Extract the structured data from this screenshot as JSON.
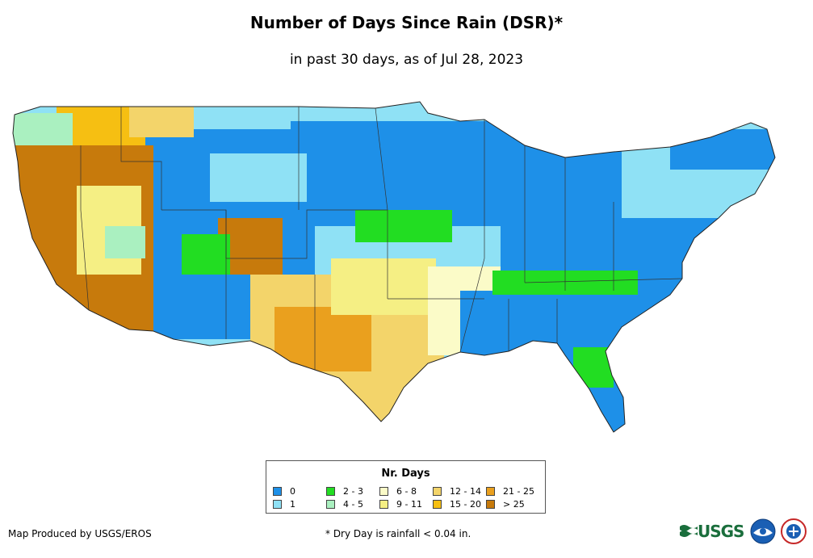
{
  "title": "Number of Days Since Rain (DSR)*",
  "subtitle": "in past 30 days, as of Jul 28, 2023",
  "legend": {
    "title": "Nr. Days",
    "items": [
      {
        "label": "0",
        "color": "#1e90e8"
      },
      {
        "label": "1",
        "color": "#8fe1f5"
      },
      {
        "label": "2 - 3",
        "color": "#22dd22"
      },
      {
        "label": "4 - 5",
        "color": "#aaf0c0"
      },
      {
        "label": "6 - 8",
        "color": "#fbfbc8"
      },
      {
        "label": "9 - 11",
        "color": "#f5ef84"
      },
      {
        "label": "12 - 14",
        "color": "#f3d46a"
      },
      {
        "label": "15 - 20",
        "color": "#f6bf12"
      },
      {
        "label": "21 - 25",
        "color": "#eaa01e"
      },
      {
        "label": "> 25",
        "color": "#c77a0c"
      }
    ]
  },
  "footer": {
    "credit": "Map Produced by USGS/EROS",
    "footnote": "* Dry Day is rainfall < 0.04 in.",
    "usgs_logo_text": "USGS",
    "logos": [
      "usgs-logo",
      "noaa-logo",
      "nws-logo"
    ]
  }
}
